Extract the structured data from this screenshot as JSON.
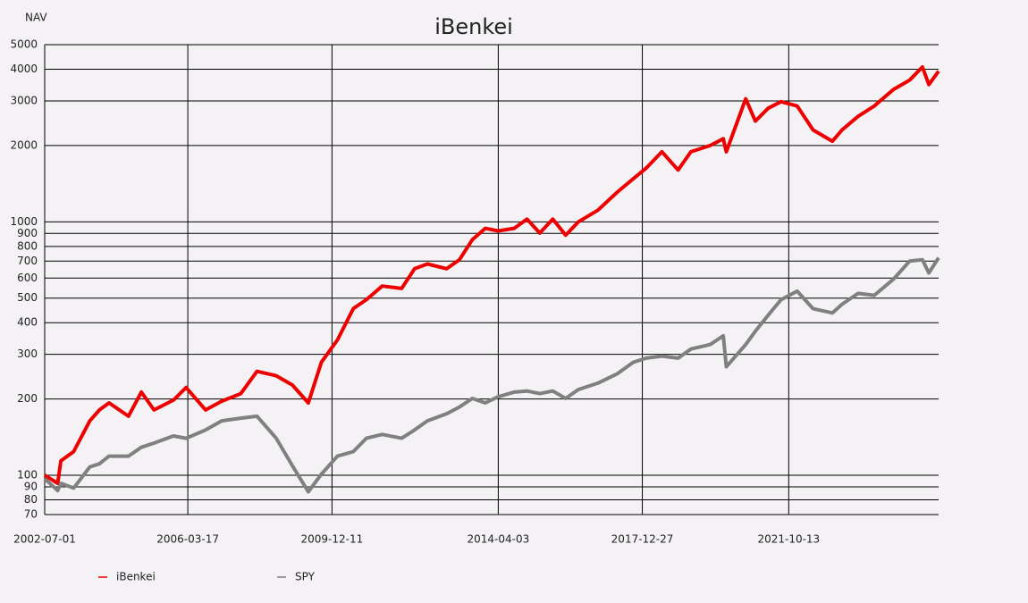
{
  "chart_data": {
    "type": "line",
    "title": "iBenkei",
    "y_label": "NAV",
    "log_y": true,
    "grid": true,
    "x": [
      "2002-07-01",
      "2002-11-01",
      "2002-12-01",
      "2003-04-01",
      "2003-09-01",
      "2003-12-01",
      "2004-03-01",
      "2004-09-01",
      "2005-01-01",
      "2005-05-01",
      "2005-11-01",
      "2006-03-01",
      "2006-09-01",
      "2007-02-01",
      "2007-08-01",
      "2008-01-01",
      "2008-07-01",
      "2008-12-01",
      "2009-05-01",
      "2009-09-01",
      "2010-02-01",
      "2010-07-01",
      "2010-11-01",
      "2011-04-01",
      "2011-10-01",
      "2012-02-01",
      "2012-06-01",
      "2012-12-01",
      "2013-04-01",
      "2013-08-01",
      "2013-12-01",
      "2014-04-01",
      "2014-09-01",
      "2015-01-01",
      "2015-05-01",
      "2015-09-01",
      "2016-01-01",
      "2016-05-01",
      "2016-11-01",
      "2017-05-01",
      "2017-10-01",
      "2018-02-01",
      "2018-07-01",
      "2018-12-01",
      "2019-04-01",
      "2019-10-01",
      "2020-02-01",
      "2020-03-01",
      "2020-09-01",
      "2020-12-01",
      "2021-04-01",
      "2021-08-01",
      "2022-01-01",
      "2022-06-01",
      "2022-12-01",
      "2023-03-01",
      "2023-08-01",
      "2024-01-01",
      "2024-07-01",
      "2024-12-01",
      "2025-04-01",
      "2025-06-01",
      "2025-09-01"
    ],
    "series": [
      {
        "name": "iBenkei",
        "color": "#ee0000",
        "values": [
          100,
          93,
          114,
          124,
          164,
          181,
          193,
          171,
          213,
          181,
          198,
          222,
          181,
          196,
          210,
          257,
          247,
          227,
          193,
          279,
          342,
          455,
          493,
          558,
          546,
          653,
          682,
          653,
          709,
          850,
          943,
          921,
          943,
          1025,
          903,
          1025,
          886,
          1000,
          1111,
          1306,
          1478,
          1628,
          1890,
          1601,
          1890,
          2000,
          2128,
          1890,
          3057,
          2497,
          2805,
          2980,
          2862,
          2304,
          2080,
          2304,
          2609,
          2862,
          3330,
          3624,
          4081,
          3479,
          3930
        ]
      },
      {
        "name": "SPY",
        "color": "#808080",
        "values": [
          97,
          87,
          93,
          89,
          108,
          111,
          119,
          119,
          129,
          134,
          143,
          140,
          151,
          164,
          168,
          171,
          140,
          109,
          86,
          101,
          119,
          124,
          140,
          145,
          140,
          151,
          164,
          175,
          186,
          201,
          193,
          204,
          213,
          215,
          210,
          215,
          201,
          218,
          231,
          251,
          279,
          290,
          295,
          290,
          315,
          328,
          355,
          268,
          328,
          370,
          428,
          493,
          533,
          454,
          437,
          473,
          522,
          513,
          594,
          700,
          709,
          628,
          722
        ]
      }
    ],
    "xlim": [
      "2002-07-01",
      "2025-09-01"
    ],
    "xticks": [
      "2002-07-01",
      "2006-03-17",
      "2009-12-11",
      "2014-04-03",
      "2017-12-27",
      "2021-10-13"
    ],
    "ylim": [
      70,
      5000
    ],
    "yticks": [
      70,
      80,
      90,
      100,
      200,
      300,
      400,
      500,
      600,
      700,
      800,
      900,
      1000,
      2000,
      3000,
      4000,
      5000
    ]
  }
}
